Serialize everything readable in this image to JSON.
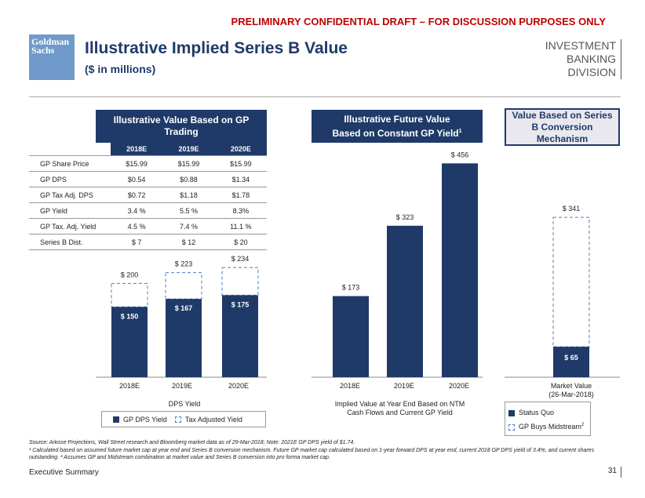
{
  "banner": "PRELIMINARY CONFIDENTIAL DRAFT – FOR DISCUSSION PURPOSES ONLY",
  "logo_text": "Goldman Sachs",
  "title": "Illustrative Implied Series B Value",
  "subtitle": "($ in millions)",
  "division_line1": "INVESTMENT BANKING",
  "division_line2": "DIVISION",
  "panels": {
    "gp_trading": "Illustrative Value Based on GP Trading",
    "future_value": "Illustrative Future Value Based on Constant GP Yield",
    "future_value_sup": "1",
    "conversion": "Value Based on Series B Conversion Mechanism"
  },
  "table": {
    "columns": [
      "2018E",
      "2019E",
      "2020E"
    ],
    "rows": [
      {
        "label": "GP Share Price",
        "values": [
          "$15.99",
          "$15.99",
          "$15.99"
        ]
      },
      {
        "label": "GP DPS",
        "values": [
          "$0.54",
          "$0.88",
          "$1.34"
        ]
      },
      {
        "label": "GP Tax Adj. DPS",
        "values": [
          "$0.72",
          "$1.18",
          "$1.78"
        ]
      },
      {
        "label": "GP Yield",
        "values": [
          "3.4 %",
          "5.5 %",
          "8.3%"
        ]
      },
      {
        "label": "GP Tax. Adj. Yield",
        "values": [
          "4.5 %",
          "7.4 %",
          "11.1 %"
        ]
      },
      {
        "label": "Series B Dist.",
        "values": [
          "$ 7",
          "$ 12",
          "$ 20"
        ]
      }
    ]
  },
  "colors": {
    "navy": "#1f3a68",
    "accent_dash": "#4f7fbf"
  },
  "chart_data": [
    {
      "type": "bar",
      "categories": [
        "2018E",
        "2019E",
        "2020E"
      ],
      "series": [
        {
          "name": "GP DPS Yield",
          "values": [
            150,
            167,
            175
          ],
          "labels": [
            "$ 150",
            "$ 167",
            "$ 175"
          ]
        },
        {
          "name": "Tax Adjusted Yield",
          "values": [
            200,
            223,
            234
          ],
          "labels": [
            "$ 200",
            "$ 223",
            "$ 234"
          ]
        }
      ],
      "xlabel": "DPS Yield"
    },
    {
      "type": "bar",
      "categories": [
        "2018E",
        "2019E",
        "2020E"
      ],
      "series": [
        {
          "values": [
            173,
            323,
            456
          ],
          "labels": [
            "$ 173",
            "$ 323",
            "$ 456"
          ]
        }
      ],
      "xlabel": "Implied Value at Year End Based on NTM Cash Flows and Current GP Yield"
    },
    {
      "type": "bar",
      "categories": [
        "Market Value (26-Mar-2018)"
      ],
      "series": [
        {
          "name": "Status Quo",
          "values": [
            65
          ],
          "labels": [
            "$ 65"
          ]
        },
        {
          "name": "GP Buys Midstream",
          "values": [
            341
          ],
          "labels": [
            "$ 341"
          ]
        }
      ]
    }
  ],
  "legend1": {
    "gp_dps": "GP DPS Yield",
    "tax_adj": "Tax Adjusted Yield"
  },
  "legend3": {
    "status_quo": "Status Quo",
    "buys": "GP Buys Midstream",
    "buys_sup": "2"
  },
  "market_value_line1": "Market Value",
  "market_value_line2": "(26-Mar-2018)",
  "source": "Source: Arkose Projections, Wall Street research and Bloomberg market data as of 29-Mar-2018; Note: 2021E GP DPS yield of  $1.74.",
  "footnote": "¹ Calculated based on assumed future market cap at year end and Series B conversion mechanism. Future GP market cap calculated based on 1-year forward DPS at year end, current 2018 GP DPS yield of 3.4%, and current shares outstanding. ² Assumes GP and Midstream combination at market value and Series B conversion into pro forma market cap.",
  "footer": "Executive Summary",
  "page_number": "31"
}
